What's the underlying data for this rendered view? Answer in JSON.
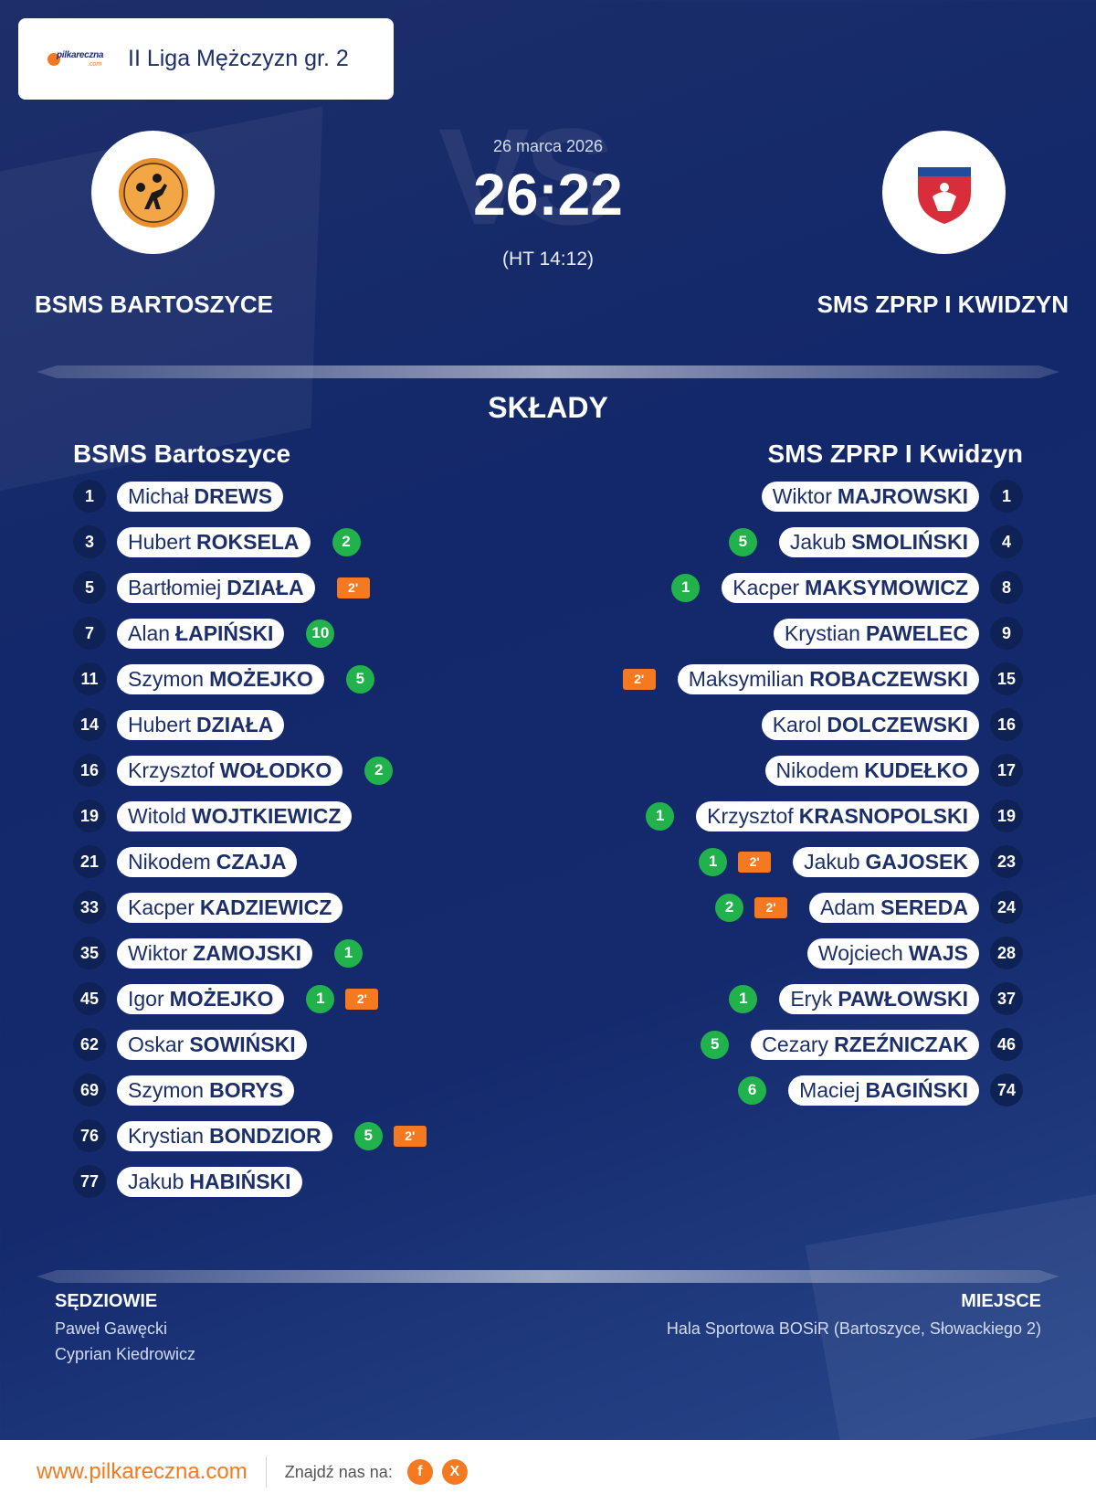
{
  "league": {
    "title": "II Liga Mężczyzn gr. 2",
    "logo_text": "pilkareczna",
    "logo_sub": ".com"
  },
  "match": {
    "date": "26 marca 2026",
    "score": "26:22",
    "halftime": "(HT 14:12)",
    "vs": "VS"
  },
  "home": {
    "name_upper": "BSMS BARTOSZYCE",
    "name": "BSMS Bartoszyce"
  },
  "away": {
    "name_upper": "SMS ZPRP I KWIDZYN",
    "name": "SMS ZPRP I Kwidzyn"
  },
  "lineups_title": "SKŁADY",
  "home_players": [
    {
      "no": "1",
      "first": "Michał",
      "last": "DREWS",
      "goals": "",
      "penalty": ""
    },
    {
      "no": "3",
      "first": "Hubert",
      "last": "ROKSELA",
      "goals": "2",
      "penalty": ""
    },
    {
      "no": "5",
      "first": "Bartłomiej",
      "last": "DZIAŁA",
      "goals": "",
      "penalty": "2'"
    },
    {
      "no": "7",
      "first": "Alan",
      "last": "ŁAPIŃSKI",
      "goals": "10",
      "penalty": ""
    },
    {
      "no": "11",
      "first": "Szymon",
      "last": "MOŻEJKO",
      "goals": "5",
      "penalty": ""
    },
    {
      "no": "14",
      "first": "Hubert",
      "last": "DZIAŁA",
      "goals": "",
      "penalty": ""
    },
    {
      "no": "16",
      "first": "Krzysztof",
      "last": "WOŁODKO",
      "goals": "2",
      "penalty": ""
    },
    {
      "no": "19",
      "first": "Witold",
      "last": "WOJTKIEWICZ",
      "goals": "",
      "penalty": ""
    },
    {
      "no": "21",
      "first": "Nikodem",
      "last": "CZAJA",
      "goals": "",
      "penalty": ""
    },
    {
      "no": "33",
      "first": "Kacper",
      "last": "KADZIEWICZ",
      "goals": "",
      "penalty": ""
    },
    {
      "no": "35",
      "first": "Wiktor",
      "last": "ZAMOJSKI",
      "goals": "1",
      "penalty": ""
    },
    {
      "no": "45",
      "first": "Igor",
      "last": "MOŻEJKO",
      "goals": "1",
      "penalty": "2'"
    },
    {
      "no": "62",
      "first": "Oskar",
      "last": "SOWIŃSKI",
      "goals": "",
      "penalty": ""
    },
    {
      "no": "69",
      "first": "Szymon",
      "last": "BORYS",
      "goals": "",
      "penalty": ""
    },
    {
      "no": "76",
      "first": "Krystian",
      "last": "BONDZIOR",
      "goals": "5",
      "penalty": "2'"
    },
    {
      "no": "77",
      "first": "Jakub",
      "last": "HABIŃSKI",
      "goals": "",
      "penalty": ""
    }
  ],
  "away_players": [
    {
      "no": "1",
      "first": "Wiktor",
      "last": "MAJROWSKI",
      "goals": "",
      "penalty": ""
    },
    {
      "no": "4",
      "first": "Jakub",
      "last": "SMOLIŃSKI",
      "goals": "5",
      "penalty": ""
    },
    {
      "no": "8",
      "first": "Kacper",
      "last": "MAKSYMOWICZ",
      "goals": "1",
      "penalty": ""
    },
    {
      "no": "9",
      "first": "Krystian",
      "last": "PAWELEC",
      "goals": "",
      "penalty": ""
    },
    {
      "no": "15",
      "first": "Maksymilian",
      "last": "ROBACZEWSKI",
      "goals": "",
      "penalty": "2'"
    },
    {
      "no": "16",
      "first": "Karol",
      "last": "DOLCZEWSKI",
      "goals": "",
      "penalty": ""
    },
    {
      "no": "17",
      "first": "Nikodem",
      "last": "KUDEŁKO",
      "goals": "",
      "penalty": ""
    },
    {
      "no": "19",
      "first": "Krzysztof",
      "last": "KRASNOPOLSKI",
      "goals": "1",
      "penalty": ""
    },
    {
      "no": "23",
      "first": "Jakub",
      "last": "GAJOSEK",
      "goals": "1",
      "penalty": "2'"
    },
    {
      "no": "24",
      "first": "Adam",
      "last": "SEREDA",
      "goals": "2",
      "penalty": "2'"
    },
    {
      "no": "28",
      "first": "Wojciech",
      "last": "WAJS",
      "goals": "",
      "penalty": ""
    },
    {
      "no": "37",
      "first": "Eryk",
      "last": "PAWŁOWSKI",
      "goals": "1",
      "penalty": ""
    },
    {
      "no": "46",
      "first": "Cezary",
      "last": "RZEŹNICZAK",
      "goals": "5",
      "penalty": ""
    },
    {
      "no": "74",
      "first": "Maciej",
      "last": "BAGIŃSKI",
      "goals": "6",
      "penalty": ""
    }
  ],
  "referees": {
    "title": "SĘDZIOWIE",
    "names": [
      "Paweł Gawęcki",
      "Cyprian Kiedrowicz"
    ]
  },
  "venue": {
    "title": "MIEJSCE",
    "name": "Hala Sportowa BOSiR (Bartoszyce, Słowackiego 2)"
  },
  "footer": {
    "url": "www.pilkareczna.com",
    "find_us": "Znajdź nas na:",
    "social": [
      {
        "icon": "facebook-icon",
        "glyph": "f"
      },
      {
        "icon": "x-icon",
        "glyph": "X"
      }
    ]
  },
  "colors": {
    "accent": "#f47920",
    "goal": "#22b24c",
    "navy": "#1c2f6a"
  }
}
